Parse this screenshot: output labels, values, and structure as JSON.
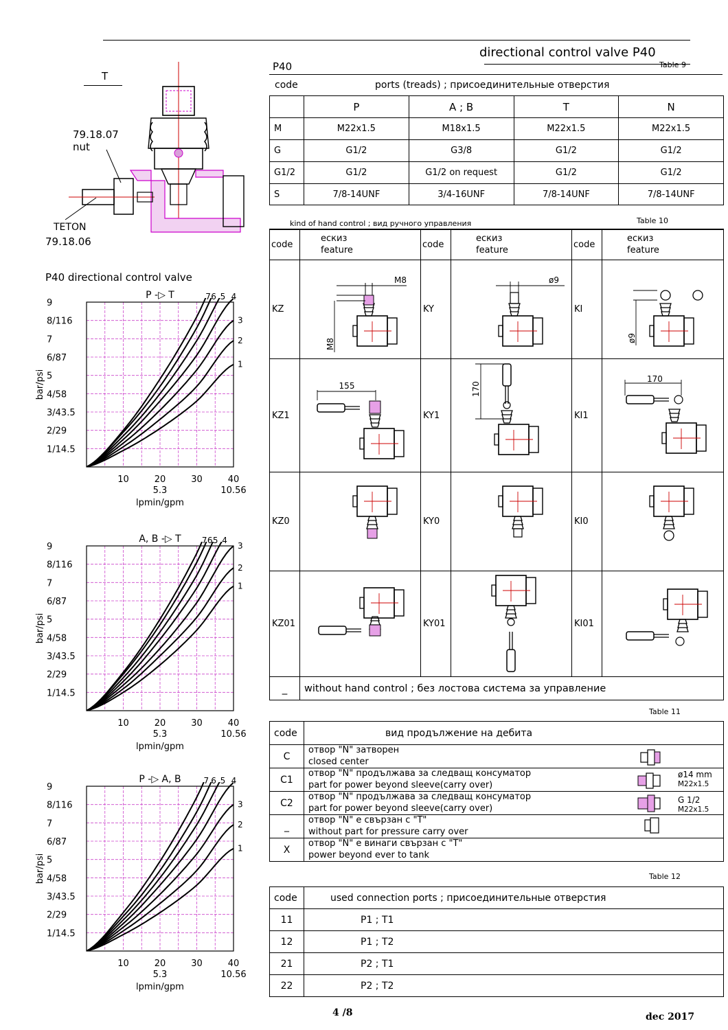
{
  "header": {
    "title": "directional control valve P40",
    "table9_label": "Table 9",
    "model": "P40",
    "code_label": "code",
    "ports_title": "ports (treads) ; присоединительные отверстия"
  },
  "valve_drawing": {
    "label_t": "T",
    "nut_code": "79.18.07",
    "nut_word": "nut",
    "teton_word": "TETON",
    "teton_code": "79.18.06"
  },
  "charts_title": "P40 directional control valve",
  "chart_data": [
    {
      "type": "line",
      "title": "P -▷ T",
      "ylabel": "bar/psi",
      "xlabel": "lpmin/gpm",
      "y_ticks": [
        "9",
        "8/116",
        "7",
        "6/87",
        "5",
        "4/58",
        "3/43.5",
        "2/29",
        "1/14.5"
      ],
      "x_ticks": [
        "10",
        "20",
        "30",
        "40"
      ],
      "x_sub_ticks": [
        "5.3",
        "10.56"
      ],
      "xlim": [
        0,
        40
      ],
      "ylim": [
        0,
        9
      ],
      "grid": true,
      "series": [
        {
          "name": "1",
          "x": [
            0,
            10,
            20,
            30,
            40
          ],
          "y": [
            0,
            0.9,
            2.1,
            3.6,
            5.6
          ]
        },
        {
          "name": "2",
          "x": [
            0,
            10,
            20,
            30,
            40
          ],
          "y": [
            0,
            1.1,
            2.6,
            4.4,
            6.9
          ]
        },
        {
          "name": "3",
          "x": [
            0,
            10,
            20,
            30,
            40
          ],
          "y": [
            0,
            1.3,
            3.1,
            5.3,
            8.0
          ]
        },
        {
          "name": "4",
          "x": [
            0,
            10,
            20,
            30,
            40
          ],
          "y": [
            0,
            1.5,
            3.6,
            6.1,
            9.2
          ]
        },
        {
          "name": "5",
          "x": [
            0,
            10,
            20,
            30,
            40
          ],
          "y": [
            0,
            1.7,
            4.0,
            6.9,
            10.3
          ]
        },
        {
          "name": "6",
          "x": [
            0,
            10,
            20,
            30,
            40
          ],
          "y": [
            0,
            1.9,
            4.4,
            7.6,
            11.4
          ]
        },
        {
          "name": "7",
          "x": [
            0,
            10,
            20,
            30,
            40
          ],
          "y": [
            0,
            2.0,
            4.8,
            8.2,
            12.3
          ]
        }
      ]
    },
    {
      "type": "line",
      "title": "A, B -▷ T",
      "ylabel": "bar/psi",
      "xlabel": "lpmin/gpm",
      "y_ticks": [
        "9",
        "8/116",
        "7",
        "6/87",
        "5",
        "4/58",
        "3/43.5",
        "2/29",
        "1/14.5"
      ],
      "x_ticks": [
        "10",
        "20",
        "30",
        "40"
      ],
      "x_sub_ticks": [
        "5.3",
        "10.56"
      ],
      "xlim": [
        0,
        40
      ],
      "ylim": [
        0,
        9
      ],
      "grid": true,
      "series": [
        {
          "name": "1",
          "x": [
            0,
            10,
            20,
            30,
            40
          ],
          "y": [
            0,
            1.0,
            2.5,
            4.4,
            6.8
          ]
        },
        {
          "name": "2",
          "x": [
            0,
            10,
            20,
            30,
            40
          ],
          "y": [
            0,
            1.2,
            3.0,
            5.1,
            7.8
          ]
        },
        {
          "name": "3",
          "x": [
            0,
            10,
            20,
            30,
            40
          ],
          "y": [
            0,
            1.4,
            3.4,
            5.9,
            9.0
          ]
        },
        {
          "name": "4",
          "x": [
            0,
            10,
            20,
            30,
            40
          ],
          "y": [
            0,
            1.6,
            3.9,
            6.7,
            10.1
          ]
        },
        {
          "name": "5",
          "x": [
            0,
            10,
            20,
            30,
            40
          ],
          "y": [
            0,
            1.8,
            4.3,
            7.4,
            11.2
          ]
        },
        {
          "name": "6",
          "x": [
            0,
            10,
            20,
            30,
            40
          ],
          "y": [
            0,
            2.0,
            4.7,
            8.1,
            12.2
          ]
        },
        {
          "name": "7",
          "x": [
            0,
            10,
            20,
            30,
            40
          ],
          "y": [
            0,
            2.1,
            5.0,
            8.6,
            13.0
          ]
        }
      ]
    },
    {
      "type": "line",
      "title": "P -▷ A, B",
      "ylabel": "bar/psi",
      "xlabel": "lpmin/gpm",
      "y_ticks": [
        "9",
        "8/116",
        "7",
        "6/87",
        "5",
        "4/58",
        "3/43.5",
        "2/29",
        "1/14.5"
      ],
      "x_ticks": [
        "10",
        "20",
        "30",
        "40"
      ],
      "x_sub_ticks": [
        "5.3",
        "10.56"
      ],
      "xlim": [
        0,
        40
      ],
      "ylim": [
        0,
        9
      ],
      "grid": true,
      "series": [
        {
          "name": "1",
          "x": [
            0,
            10,
            20,
            30,
            40
          ],
          "y": [
            0,
            0.9,
            2.1,
            3.6,
            5.6
          ]
        },
        {
          "name": "2",
          "x": [
            0,
            10,
            20,
            30,
            40
          ],
          "y": [
            0,
            1.1,
            2.6,
            4.4,
            6.9
          ]
        },
        {
          "name": "3",
          "x": [
            0,
            10,
            20,
            30,
            40
          ],
          "y": [
            0,
            1.3,
            3.1,
            5.3,
            8.0
          ]
        },
        {
          "name": "4",
          "x": [
            0,
            10,
            20,
            30,
            40
          ],
          "y": [
            0,
            1.5,
            3.6,
            6.1,
            9.2
          ]
        },
        {
          "name": "5",
          "x": [
            0,
            10,
            20,
            30,
            40
          ],
          "y": [
            0,
            1.7,
            4.0,
            6.9,
            10.3
          ]
        },
        {
          "name": "6",
          "x": [
            0,
            10,
            20,
            30,
            40
          ],
          "y": [
            0,
            1.9,
            4.4,
            7.6,
            11.4
          ]
        },
        {
          "name": "7",
          "x": [
            0,
            10,
            20,
            30,
            40
          ],
          "y": [
            0,
            2.1,
            4.9,
            8.4,
            12.6
          ]
        }
      ]
    }
  ],
  "table9": {
    "headers": [
      "P",
      "A ; B",
      "T",
      "N"
    ],
    "rows": [
      {
        "code": "M",
        "cells": [
          "M22x1.5",
          "M18x1.5",
          "M22x1.5",
          "M22x1.5"
        ]
      },
      {
        "code": "G",
        "cells": [
          "G1/2",
          "G3/8",
          "G1/2",
          "G1/2"
        ]
      },
      {
        "code": "G1/2",
        "cells": [
          "G1/2",
          "G1/2 on request",
          "G1/2",
          "G1/2"
        ]
      },
      {
        "code": "S",
        "cells": [
          "7/8-14UNF",
          "3/4-16UNF",
          "7/8-14UNF",
          "7/8-14UNF"
        ]
      }
    ]
  },
  "table10": {
    "caption": "kind of hand control ; вид ручного управления",
    "label": "Table 10",
    "code_label": "code",
    "feature_ru": "ескиз",
    "feature_en": "feature",
    "rows": [
      [
        "KZ",
        "KY",
        "KI"
      ],
      [
        "KZ1",
        "KY1",
        "KI1"
      ],
      [
        "KZ0",
        "KY0",
        "KI0"
      ],
      [
        "KZ01",
        "KY01",
        "KI01"
      ]
    ],
    "dims": {
      "m8_top": "M8",
      "m8_side": "M8",
      "phi9_top": "ø9",
      "phi9_side": "ø9",
      "d155": "155",
      "d170_v": "170",
      "d170_h": "170"
    },
    "none_code": "_",
    "none_text": "without hand control ;     без лостова система за управление"
  },
  "table11": {
    "label": "Table 11",
    "code_label": "code",
    "title": "вид продължение на дебита",
    "rows": [
      {
        "code": "C",
        "l1": "отвор \"N\" затворен",
        "l2": "closed center",
        "note1": "",
        "note2": ""
      },
      {
        "code": "C1",
        "l1": "отвор \"N\" продължава за следващ консуматор",
        "l2": "part for power beyond sleeve(carry over)",
        "note1": "ø14 mm",
        "note2": "M22x1.5"
      },
      {
        "code": "C2",
        "l1": "отвор \"N\" продължава за следващ консуматор",
        "l2": "part for power beyond sleeve(carry over)",
        "note1": "G 1/2",
        "note2": "M22x1.5"
      },
      {
        "code": "_",
        "l1": "отвор \"N\" е свързан с \"T\"",
        "l2": "without part for pressure carry over",
        "note1": "",
        "note2": ""
      },
      {
        "code": "X",
        "l1": "отвор \"N\" е винаги свързан с \"T\"",
        "l2": "power beyond ever to tank",
        "note1": "",
        "note2": ""
      }
    ]
  },
  "table12": {
    "label": "Table 12",
    "code_label": "code",
    "title": "used connection ports ; присоединительные отверстия",
    "rows": [
      {
        "code": "11",
        "value": "P1 ; T1"
      },
      {
        "code": "12",
        "value": "P1 ; T2"
      },
      {
        "code": "21",
        "value": "P2 ; T1"
      },
      {
        "code": "22",
        "value": "P2 ; T2"
      }
    ]
  },
  "footer": {
    "page": "4 /8",
    "date": "dec 2017"
  },
  "colors": {
    "grid": "#cc44cc",
    "accent_red": "#cc0000",
    "magenta": "#cc33cc"
  }
}
